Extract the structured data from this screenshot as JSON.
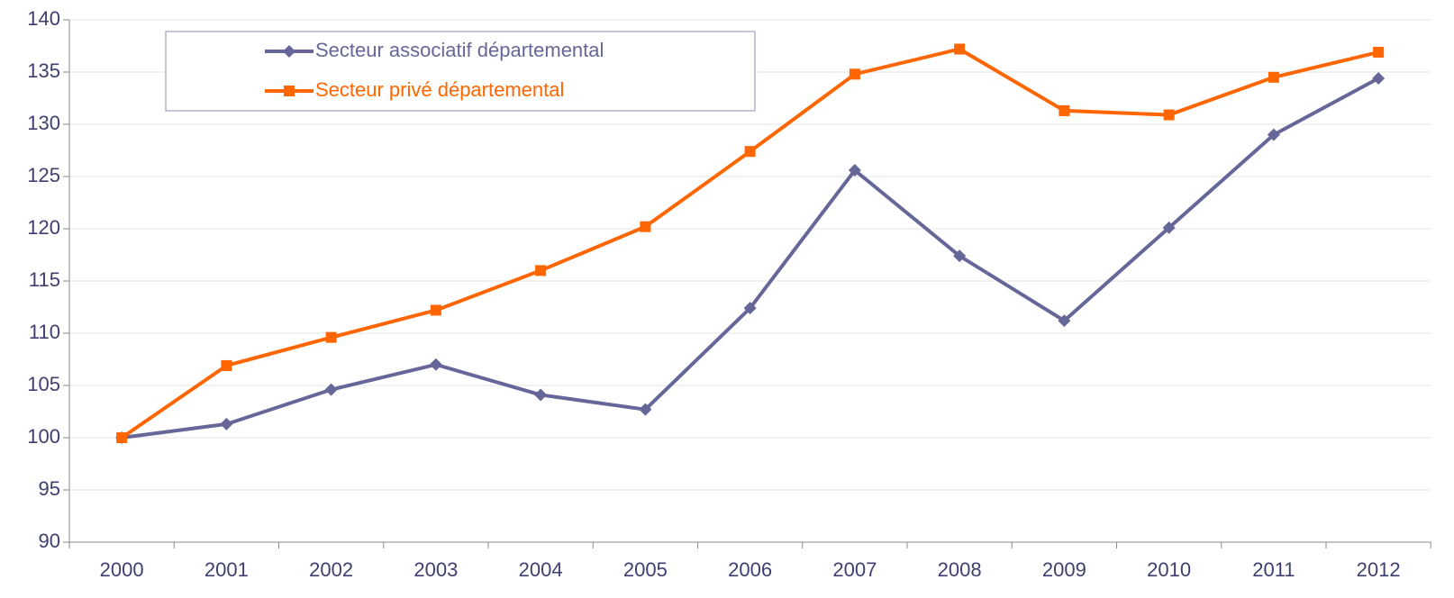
{
  "chart_data": {
    "type": "line",
    "categories": [
      "2000",
      "2001",
      "2002",
      "2003",
      "2004",
      "2005",
      "2006",
      "2007",
      "2008",
      "2009",
      "2010",
      "2011",
      "2012"
    ],
    "series": [
      {
        "name": "Secteur associatif départemental",
        "color": "#666699",
        "marker": "diamond",
        "values": [
          100,
          101.3,
          104.6,
          107.0,
          104.1,
          102.7,
          112.4,
          125.6,
          117.4,
          111.2,
          120.1,
          129.0,
          134.4
        ]
      },
      {
        "name": "Secteur privé départemental",
        "color": "#ff6600",
        "marker": "square",
        "values": [
          100,
          106.9,
          109.6,
          112.2,
          116.0,
          120.2,
          127.4,
          134.8,
          137.2,
          131.3,
          130.9,
          134.5,
          136.9
        ]
      }
    ],
    "ylim": [
      90,
      140
    ],
    "yticks": [
      90,
      95,
      100,
      105,
      110,
      115,
      120,
      125,
      130,
      135,
      140
    ],
    "grid": true,
    "legend": "upper left"
  }
}
